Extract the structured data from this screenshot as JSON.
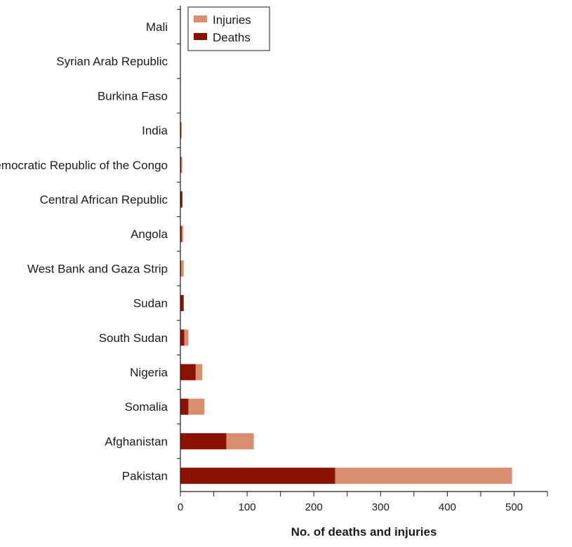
{
  "chart_data": {
    "type": "bar",
    "orientation": "horizontal",
    "stacked": true,
    "categories": [
      "Mali",
      "Syrian Arab Republic",
      "Burkina Faso",
      "India",
      "Democratic Republic of the Congo",
      "Central African Republic",
      "Angola",
      "West Bank and Gaza Strip",
      "Sudan",
      "South Sudan",
      "Nigeria",
      "Somalia",
      "Afghanistan",
      "Pakistan"
    ],
    "series": [
      {
        "name": "Deaths",
        "color": "#8b1100",
        "values": [
          0,
          0,
          0,
          1,
          1,
          3,
          2,
          1,
          5,
          6,
          23,
          12,
          69,
          232
        ]
      },
      {
        "name": "Injuries",
        "color": "#d98e70",
        "values": [
          0,
          0,
          0,
          1,
          2,
          0,
          2,
          4,
          0,
          6,
          10,
          24,
          41,
          265
        ]
      }
    ],
    "xlabel": "No. of deaths and injuries",
    "ylabel": "",
    "title": "",
    "xlim": [
      0,
      550
    ],
    "xticks": [
      0,
      100,
      200,
      300,
      400,
      500
    ],
    "minor_tick_step": 50,
    "legend": {
      "placement": "top-left",
      "entries": [
        "Injuries",
        "Deaths"
      ]
    },
    "grid": false
  }
}
